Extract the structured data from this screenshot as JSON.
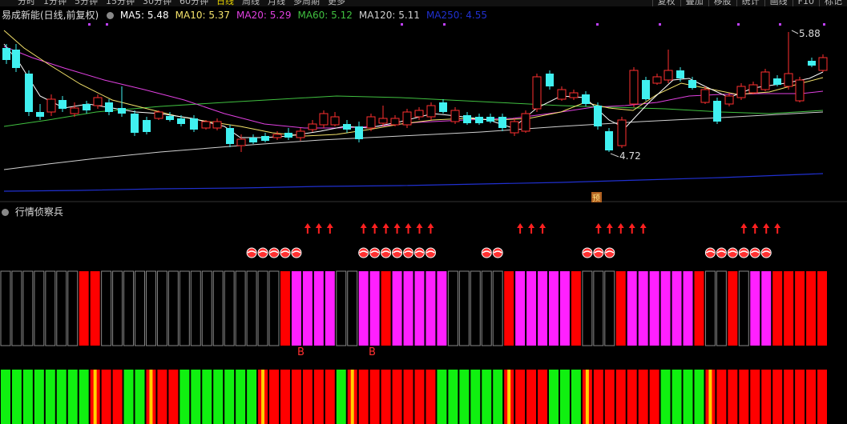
{
  "toolbar": {
    "tabs": [
      "分时",
      "1分钟",
      "5分钟",
      "15分钟",
      "30分钟",
      "60分钟",
      "日线",
      "周线",
      "月线",
      "多周期",
      "更多"
    ],
    "active_tab": "日线",
    "right_tools": [
      "复权",
      "叠加",
      "移股",
      "统计",
      "画线",
      "F10",
      "标记"
    ]
  },
  "main_panel": {
    "stock_name": "易成新能(日线,前复权)",
    "ma": [
      {
        "label": "MA5: 5.48",
        "color": "#ffffff"
      },
      {
        "label": "MA10: 5.37",
        "color": "#f5e36b"
      },
      {
        "label": "MA20: 5.29",
        "color": "#e040e0"
      },
      {
        "label": "MA60: 5.12",
        "color": "#40c040"
      },
      {
        "label": "MA120: 5.11",
        "color": "#d0d0d0"
      },
      {
        "label": "MA250: 4.55",
        "color": "#2030d0"
      }
    ],
    "high_label": "5.88",
    "low_label": "4.72",
    "marker_char": "预"
  },
  "indicator_panel": {
    "title": "行情侦察兵",
    "b_label_1": "B",
    "b_label_2": "B",
    "colors": {
      "up": "#ff2020",
      "down": "#40f0f0",
      "magenta": "#ff20ff",
      "green": "#10f010",
      "red": "#ff0000",
      "gold": "#ffd000"
    },
    "bars_mid": [
      "e",
      "e",
      "e",
      "e",
      "e",
      "e",
      "e",
      "r",
      "r",
      "e",
      "e",
      "e",
      "e",
      "e",
      "e",
      "e",
      "e",
      "e",
      "e",
      "e",
      "e",
      "e",
      "e",
      "e",
      "e",
      "r",
      "m",
      "m",
      "m",
      "m",
      "e",
      "e",
      "m",
      "m",
      "r",
      "m",
      "m",
      "m",
      "m",
      "m",
      "e",
      "e",
      "e",
      "e",
      "e",
      "r",
      "m",
      "m",
      "m",
      "m",
      "m",
      "r",
      "e",
      "e",
      "e",
      "r",
      "m",
      "m",
      "m",
      "m",
      "m",
      "m",
      "r",
      "e",
      "e",
      "r",
      "e",
      "m",
      "m",
      "r",
      "r",
      "r",
      "r",
      "r"
    ],
    "bars_bot": [
      "g",
      "g",
      "g",
      "g",
      "g",
      "g",
      "g",
      "g",
      "y",
      "r",
      "r",
      "g",
      "g",
      "y",
      "r",
      "r",
      "g",
      "g",
      "g",
      "g",
      "g",
      "g",
      "g",
      "y",
      "r",
      "r",
      "r",
      "r",
      "r",
      "r",
      "g",
      "y",
      "r",
      "r",
      "r",
      "r",
      "r",
      "r",
      "r",
      "g",
      "g",
      "g",
      "g",
      "g",
      "g",
      "y",
      "r",
      "r",
      "r",
      "g",
      "g",
      "g",
      "y",
      "r",
      "r",
      "r",
      "r",
      "r",
      "r",
      "g",
      "g",
      "g",
      "g",
      "y",
      "r",
      "r",
      "r",
      "r",
      "r",
      "r",
      "r",
      "r",
      "r",
      "r"
    ],
    "arrows": [
      27,
      28,
      29,
      32,
      33,
      34,
      35,
      36,
      37,
      38,
      46,
      47,
      48,
      53,
      54,
      55,
      56,
      57,
      66,
      67,
      68,
      69
    ],
    "balls": [
      22,
      23,
      24,
      25,
      26,
      32,
      33,
      34,
      35,
      36,
      37,
      38,
      43,
      44,
      52,
      53,
      54,
      63,
      64,
      65,
      66,
      67,
      68
    ]
  }
}
